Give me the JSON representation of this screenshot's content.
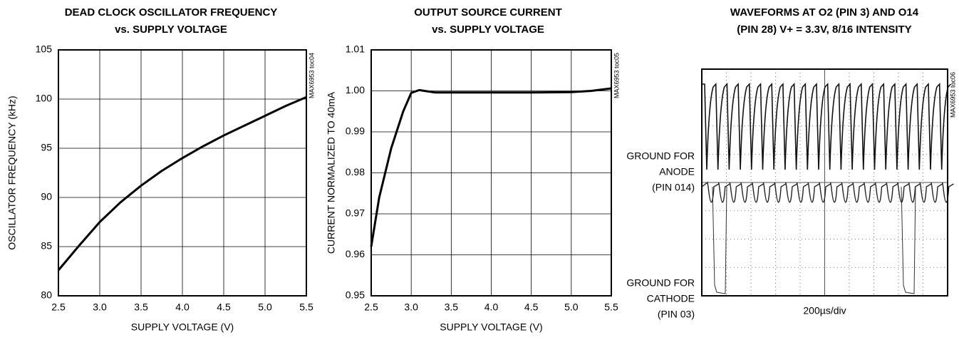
{
  "chart_data": [
    {
      "type": "line",
      "title": [
        "DEAD CLOCK OSCILLATOR FREQUENCY",
        "vs. SUPPLY VOLTAGE"
      ],
      "x_label": "SUPPLY VOLTAGE (V)",
      "y_label": "OSCILLATOR FREQUENCY (kHz)",
      "note": "MAX6953 toc04",
      "x": [
        2.5,
        2.75,
        3.0,
        3.25,
        3.5,
        3.75,
        4.0,
        4.25,
        4.5,
        4.75,
        5.0,
        5.25,
        5.5
      ],
      "values": [
        82.6,
        85.1,
        87.5,
        89.5,
        91.2,
        92.7,
        94.0,
        95.2,
        96.3,
        97.3,
        98.3,
        99.3,
        100.2
      ],
      "color": "#000000",
      "xlim": [
        2.5,
        5.5
      ],
      "xticks": [
        2.5,
        {
          "value": 3,
          "label": "3.0"
        },
        3.5,
        {
          "value": 4,
          "label": "4.0"
        },
        4.5,
        {
          "value": 5,
          "label": "5.0"
        },
        5.5
      ],
      "ylim": [
        80,
        105
      ],
      "yticks": [
        80,
        85,
        90,
        95,
        100,
        105
      ],
      "grid": true
    },
    {
      "type": "line",
      "title": [
        "OUTPUT SOURCE CURRENT",
        "vs. SUPPLY VOLTAGE"
      ],
      "x_label": "SUPPLY VOLTAGE (V)",
      "y_label": "CURRENT NORMALIZED TO 40mA",
      "note": "MAX6953 toc05",
      "x": [
        2.5,
        2.6,
        2.75,
        2.9,
        3.0,
        3.1,
        3.3,
        3.5,
        4.0,
        4.5,
        5.0,
        5.25,
        5.5
      ],
      "values": [
        0.962,
        0.974,
        0.986,
        0.995,
        0.9995,
        1.0002,
        0.9996,
        0.9996,
        0.9996,
        0.9996,
        0.9997,
        1.0,
        1.0006
      ],
      "color": "#000000",
      "xlim": [
        2.5,
        5.5
      ],
      "xticks": [
        2.5,
        {
          "value": 3,
          "label": "3.0"
        },
        3.5,
        {
          "value": 4,
          "label": "4.0"
        },
        4.5,
        {
          "value": 5,
          "label": "5.0"
        },
        5.5
      ],
      "ylim": [
        0.95,
        1.01
      ],
      "yticks": [
        0.95,
        0.96,
        0.97,
        0.98,
        0.99,
        {
          "value": 1,
          "label": "1.00"
        },
        1.01
      ],
      "grid": true
    },
    {
      "type": "oscilloscope",
      "title": [
        "WAVEFORMS AT O2 (PIN 3) AND O14",
        "(PIN 28) V+ = 3.3V, 8/16 INTENSITY"
      ],
      "x_label": "200µs/div",
      "note": "MAX6953 toc06",
      "annotations": [
        [
          "GROUND FOR",
          "ANODE",
          "(PIN 014)"
        ],
        [
          "GROUND FOR",
          "CATHODE",
          "(PIN 03)"
        ]
      ]
    }
  ]
}
